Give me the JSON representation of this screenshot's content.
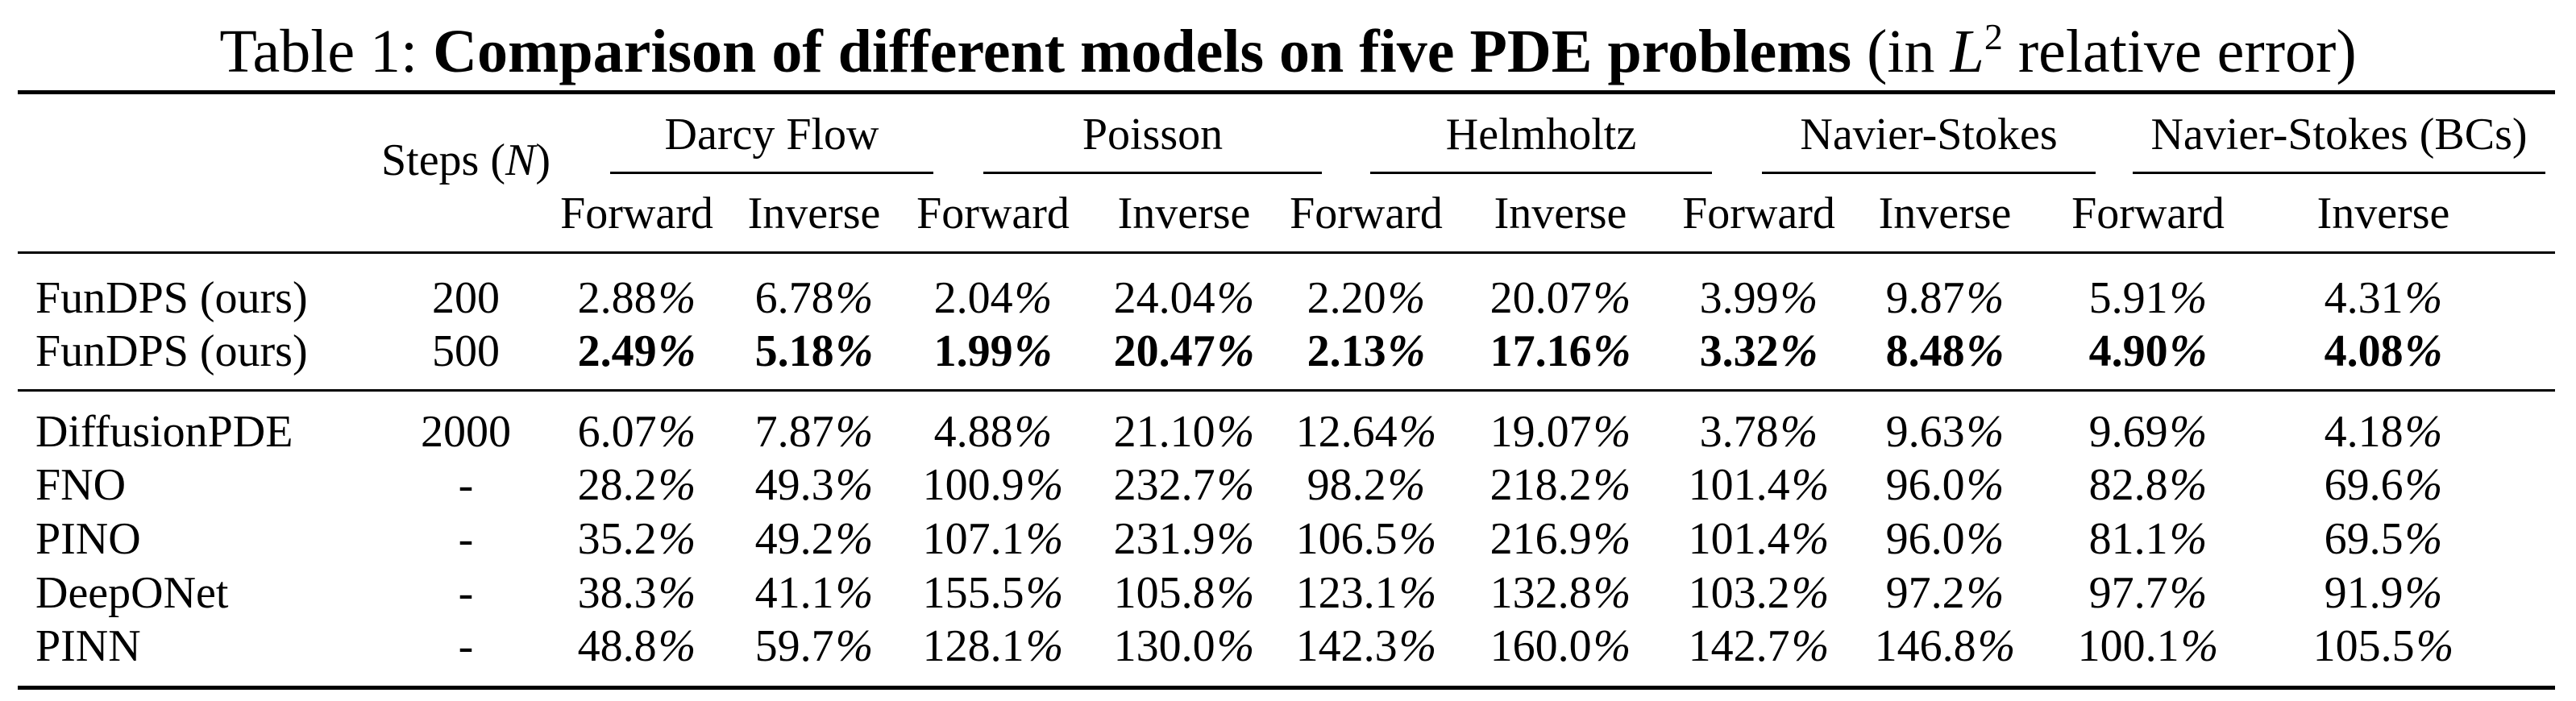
{
  "caption": {
    "prefix": "Table 1:",
    "bold": "Comparison of different models on five PDE problems",
    "suffix_open": "(in",
    "math_L": "L",
    "math_sup": "2",
    "suffix_close": "relative error)"
  },
  "header": {
    "steps_label": "Steps",
    "steps_var": "N",
    "groups": [
      "Darcy Flow",
      "Poisson",
      "Helmholtz",
      "Navier-Stokes",
      "Navier-Stokes (BCs)"
    ],
    "sub": [
      "Forward",
      "Inverse",
      "Forward",
      "Inverse",
      "Forward",
      "Inverse",
      "Forward",
      "Inverse",
      "Forward",
      "Inverse"
    ]
  },
  "rows": [
    {
      "model": "FunDPS (ours)",
      "steps": "200",
      "bold": false,
      "values": [
        "2.88",
        "6.78",
        "2.04",
        "24.04",
        "2.20",
        "20.07",
        "3.99",
        "9.87",
        "5.91",
        "4.31"
      ]
    },
    {
      "model": "FunDPS (ours)",
      "steps": "500",
      "bold": true,
      "values": [
        "2.49",
        "5.18",
        "1.99",
        "20.47",
        "2.13",
        "17.16",
        "3.32",
        "8.48",
        "4.90",
        "4.08"
      ]
    },
    {
      "model": "DiffusionPDE",
      "steps": "2000",
      "bold": false,
      "values": [
        "6.07",
        "7.87",
        "4.88",
        "21.10",
        "12.64",
        "19.07",
        "3.78",
        "9.63",
        "9.69",
        "4.18"
      ]
    },
    {
      "model": "FNO",
      "steps": "-",
      "bold": false,
      "values": [
        "28.2",
        "49.3",
        "100.9",
        "232.7",
        "98.2",
        "218.2",
        "101.4",
        "96.0",
        "82.8",
        "69.6"
      ]
    },
    {
      "model": "PINO",
      "steps": "-",
      "bold": false,
      "values": [
        "35.2",
        "49.2",
        "107.1",
        "231.9",
        "106.5",
        "216.9",
        "101.4",
        "96.0",
        "81.1",
        "69.5"
      ]
    },
    {
      "model": "DeepONet",
      "steps": "-",
      "bold": false,
      "values": [
        "38.3",
        "41.1",
        "155.5",
        "105.8",
        "123.1",
        "132.8",
        "103.2",
        "97.2",
        "97.7",
        "91.9"
      ]
    },
    {
      "model": "PINN",
      "steps": "-",
      "bold": false,
      "values": [
        "48.8",
        "59.7",
        "128.1",
        "130.0",
        "142.3",
        "160.0",
        "142.7",
        "146.8",
        "100.1",
        "105.5"
      ]
    }
  ],
  "percent_sign": "%"
}
